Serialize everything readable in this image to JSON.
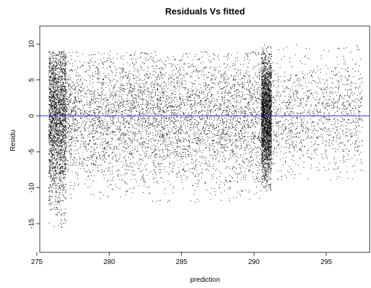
{
  "chart_data": {
    "type": "scatter",
    "title": "Residuals Vs fitted",
    "xlabel": "prediction",
    "ylabel": "Residu",
    "xlim": [
      275.2,
      298.0
    ],
    "ylim": [
      -19.0,
      12.5
    ],
    "x_ticks": [
      275,
      280,
      285,
      290,
      295
    ],
    "y_ticks": [
      10,
      5,
      0,
      -5,
      -10,
      -15
    ],
    "reference_line": {
      "y": 0,
      "color": "#3b3bd6"
    },
    "point_color": "#000000",
    "point_summary": [
      {
        "x_range": [
          275.8,
          277.0
        ],
        "y_range": [
          -15.5,
          9.0
        ],
        "density": "very dense"
      },
      {
        "x_range": [
          277.0,
          290.5
        ],
        "y_range": [
          -12.0,
          9.0
        ],
        "density": "dense"
      },
      {
        "x_range": [
          290.5,
          291.2
        ],
        "y_range": [
          -10.5,
          10.0
        ],
        "density": "very dense"
      },
      {
        "x_range": [
          291.2,
          297.5
        ],
        "y_range": [
          -9.0,
          10.0
        ],
        "density": "sparse"
      }
    ],
    "grid": false,
    "legend": "none"
  }
}
